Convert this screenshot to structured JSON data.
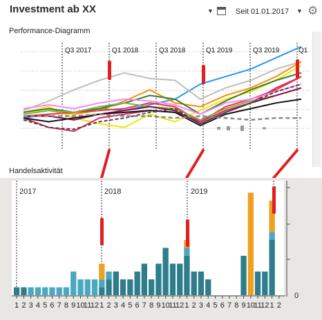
{
  "header": {
    "title": "Investment ab XX",
    "since_label": "Seit 01.01.2017",
    "icons": [
      "dropdown-caret-icon",
      "calendar-icon",
      "dropdown-caret-icon",
      "gear-icon"
    ]
  },
  "performance": {
    "label": "Performance-Diagramm",
    "quarters": [
      "Q3 2017",
      "Q1 2018",
      "Q3 2018",
      "Q1 2019",
      "Q3 2019",
      "Q1"
    ]
  },
  "trading": {
    "label": "Handelsaktivität",
    "years": [
      "2017",
      "2018",
      "2019"
    ],
    "month_ticks": [
      "1",
      "2",
      "3",
      "4",
      "5",
      "6",
      "7",
      "8",
      "9",
      "10",
      "11",
      "12",
      "1",
      "2",
      "3",
      "4",
      "5",
      "6",
      "7",
      "8",
      "9",
      "10",
      "11",
      "12",
      "1",
      "2",
      "3",
      "4",
      "5",
      "6",
      "7",
      "8",
      "9",
      "10",
      "11",
      "12",
      "1",
      "2"
    ],
    "y_zero": "0",
    "colors": {
      "teal": "#2e7d8c",
      "light_teal": "#4ba8c0",
      "orange": "#f0a020",
      "red": "#e02020"
    }
  },
  "chart_data": [
    {
      "type": "line",
      "title": "Performance-Diagramm",
      "x": [
        "2017-06",
        "2017-09",
        "2017-12",
        "2018-03",
        "2018-06",
        "2018-09",
        "2018-12",
        "2019-03",
        "2019-06",
        "2019-09",
        "2019-12",
        "2020-02"
      ],
      "series": [
        {
          "color": "#2196f3",
          "values": [
            0,
            2,
            3,
            5,
            4,
            7,
            10,
            18,
            22,
            26,
            32,
            38
          ]
        },
        {
          "color": "#bdbdbd",
          "values": [
            4,
            9,
            15,
            20,
            24,
            21,
            20,
            10,
            16,
            20,
            26,
            30
          ]
        },
        {
          "color": "#ff8c00",
          "values": [
            2,
            4,
            2,
            4,
            9,
            15,
            8,
            6,
            12,
            16,
            22,
            30
          ]
        },
        {
          "color": "#f5e400",
          "values": [
            3,
            6,
            0,
            -3,
            -5,
            2,
            -2,
            4,
            10,
            14,
            20,
            28
          ]
        },
        {
          "color": "#2e7d32",
          "values": [
            3,
            5,
            3,
            5,
            8,
            12,
            10,
            2,
            9,
            15,
            20,
            24
          ]
        },
        {
          "color": "#e53935",
          "values": [
            1,
            2,
            3,
            4,
            5,
            8,
            6,
            -2,
            6,
            10,
            15,
            22
          ]
        },
        {
          "color": "#e91e63",
          "values": [
            0,
            -5,
            -7,
            0,
            2,
            4,
            3,
            -2,
            4,
            8,
            16,
            22
          ]
        },
        {
          "color": "#7cb342",
          "values": [
            2,
            4,
            3,
            6,
            8,
            6,
            5,
            -1,
            5,
            9,
            12,
            16
          ]
        },
        {
          "color": "#ff80ff",
          "values": [
            5,
            7,
            5,
            8,
            10,
            9,
            7,
            2,
            8,
            10,
            14,
            18
          ]
        },
        {
          "color": "#880e4f",
          "values": [
            1,
            1,
            -1,
            2,
            4,
            6,
            4,
            -3,
            3,
            8,
            12,
            16
          ]
        },
        {
          "color": "#111111",
          "values": [
            0,
            -2,
            0,
            2,
            3,
            4,
            3,
            -4,
            2,
            5,
            8,
            10
          ]
        },
        {
          "color": "#444444",
          "values": [
            -1,
            -5,
            -6,
            -2,
            0,
            3,
            5,
            -3,
            3,
            8,
            14,
            18
          ]
        },
        {
          "color": "#888888",
          "values": [
            1,
            1,
            1,
            2,
            1,
            1,
            0,
            1,
            0,
            -1,
            0,
            0
          ]
        }
      ]
    },
    {
      "type": "bar",
      "title": "Handelsaktivität",
      "categories": [
        "1",
        "2",
        "3",
        "4",
        "5",
        "6",
        "7",
        "8",
        "9",
        "10",
        "11",
        "12",
        "1",
        "2",
        "3",
        "4",
        "5",
        "6",
        "7",
        "8",
        "9",
        "10",
        "11",
        "12",
        "1",
        "2",
        "3",
        "4",
        "5",
        "6",
        "7",
        "8",
        "9",
        "10",
        "11",
        "12",
        "1",
        "2"
      ],
      "series": [
        {
          "name": "",
          "color": "#2e7d8c",
          "values": [
            1,
            1,
            0,
            0,
            0,
            0,
            0,
            0,
            0,
            0,
            0,
            0,
            1,
            2,
            3,
            2,
            2,
            3,
            4,
            2,
            4,
            6,
            4,
            4,
            5,
            3,
            3,
            2,
            0,
            0,
            0,
            0,
            5,
            0,
            3,
            3,
            7,
            0
          ]
        },
        {
          "name": "",
          "color": "#4ba8c0",
          "values": [
            0,
            0,
            1,
            1,
            1,
            1,
            1,
            1,
            3,
            2,
            2,
            2,
            1,
            1,
            0,
            0,
            0,
            0,
            0,
            0,
            0,
            0,
            0,
            0,
            1,
            0,
            0,
            0,
            0,
            0,
            0,
            0,
            0,
            0,
            0,
            0,
            1,
            0
          ]
        },
        {
          "name": "",
          "color": "#f0a020",
          "values": [
            0,
            0,
            0,
            0,
            0,
            0,
            0,
            0,
            0,
            0,
            0,
            0,
            2,
            0,
            0,
            0,
            0,
            0,
            0,
            0,
            0,
            0,
            0,
            0,
            1,
            0,
            0,
            0,
            0,
            0,
            0,
            0,
            0,
            13,
            0,
            0,
            4,
            0
          ]
        }
      ]
    }
  ]
}
